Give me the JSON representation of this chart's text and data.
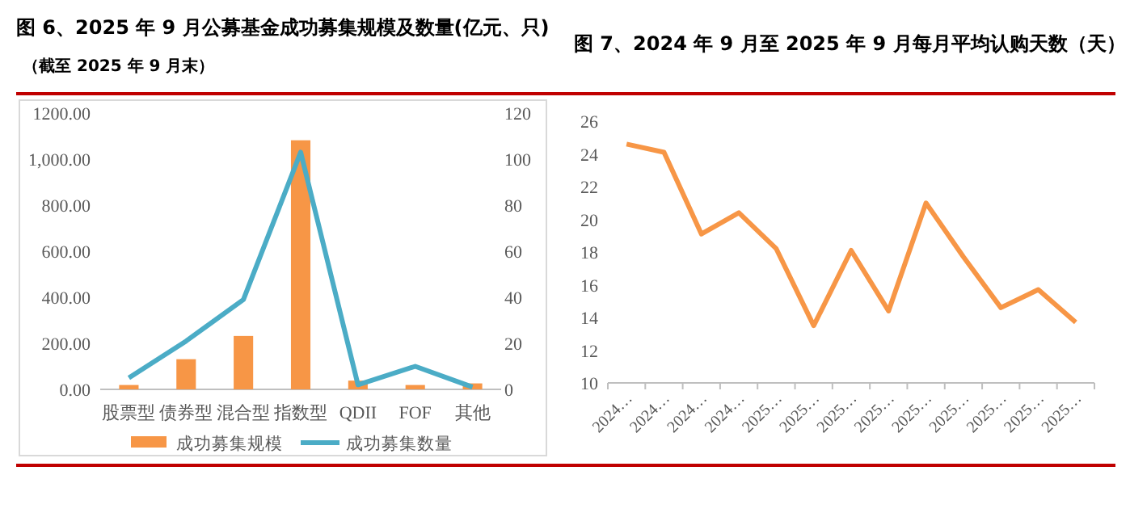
{
  "chart_data": [
    {
      "type": "bar",
      "title": "图 6、2025 年 9 月公募基金成功募集规模及数量(亿元、只)",
      "subtitle": "（截至 2025 年 9 月末）",
      "categories": [
        "股票型",
        "债券型",
        "混合型",
        "指数型",
        "QDII",
        "FOF",
        "其他"
      ],
      "series": [
        {
          "name": "成功募集规模",
          "type": "bar",
          "color": "#f79646",
          "values": [
            19,
            131,
            232,
            1082,
            38,
            19,
            26
          ]
        },
        {
          "name": "成功募集数量",
          "type": "line",
          "axis": "y2",
          "color": "#4bacc6",
          "values": [
            5,
            21,
            39,
            103,
            2,
            10,
            1
          ]
        }
      ],
      "ylim": [
        0,
        1200
      ],
      "yticks": [
        {
          "value": 0,
          "label": "0.00"
        },
        {
          "value": 200,
          "label": "200.00"
        },
        {
          "value": 400,
          "label": "400.00"
        },
        {
          "value": 600,
          "label": "600.00"
        },
        {
          "value": 800,
          "label": "800.00"
        },
        {
          "value": 1000,
          "label": "1,000.00"
        },
        {
          "value": 1200,
          "label": "1200.00"
        }
      ],
      "y2lim": [
        0,
        120
      ],
      "y2ticks": [
        0,
        20,
        40,
        60,
        80,
        100,
        120
      ],
      "legend": "bottom",
      "grid": false
    },
    {
      "type": "line",
      "title": "图 7、2024 年 9 月至 2025 年 9 月每月平均认购天数（天）",
      "categories": [
        "2024…",
        "2024…",
        "2024…",
        "2024…",
        "2025…",
        "2025…",
        "2025…",
        "2025…",
        "2025…",
        "2025…",
        "2025…",
        "2025…",
        "2025…"
      ],
      "series": [
        {
          "color": "#f79646",
          "values": [
            24.6,
            24.1,
            19.1,
            20.4,
            18.2,
            13.5,
            18.1,
            14.4,
            21.0,
            17.7,
            14.6,
            15.7,
            13.7
          ]
        }
      ],
      "ylim": [
        10,
        26
      ],
      "yticks": [
        10,
        12,
        14,
        16,
        18,
        20,
        22,
        24,
        26
      ],
      "grid": false
    }
  ]
}
